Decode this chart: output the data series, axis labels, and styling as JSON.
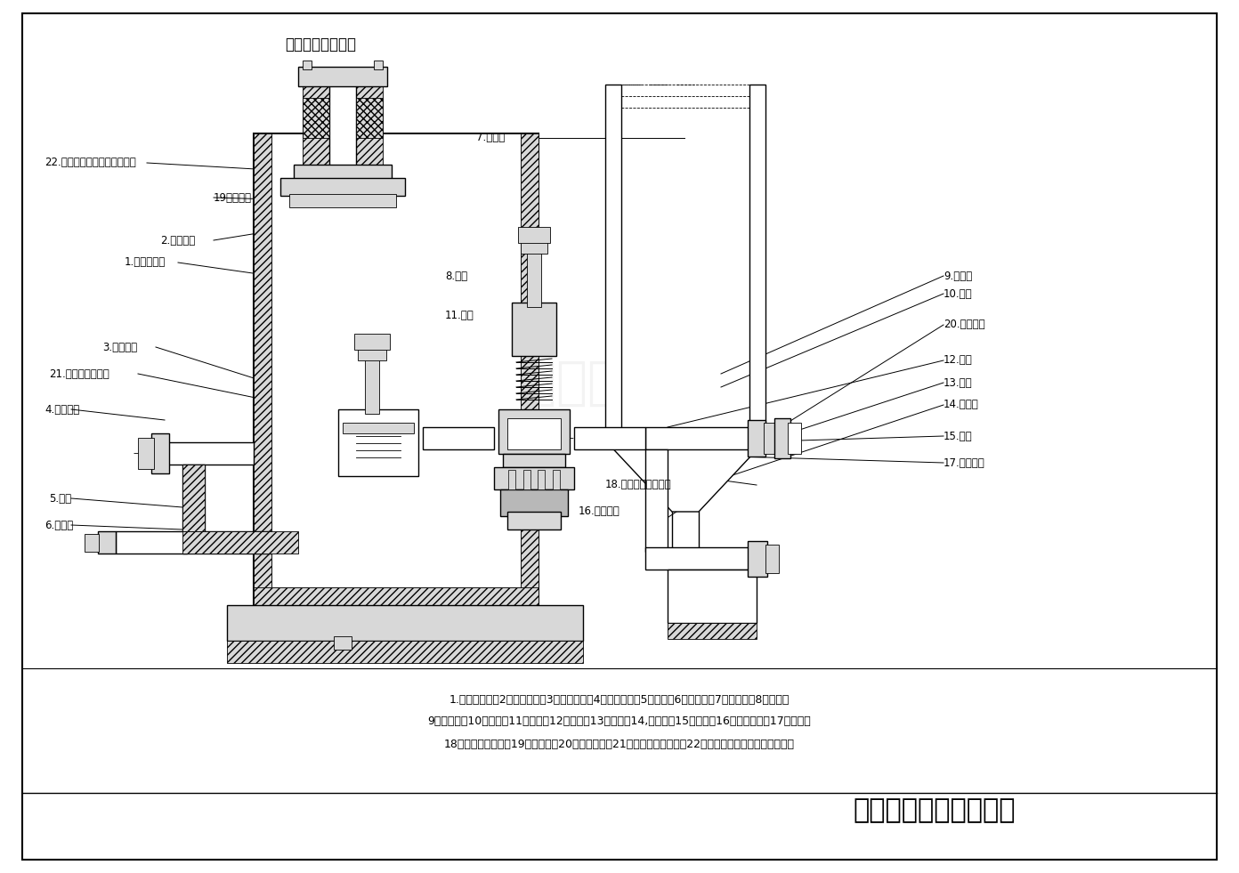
{
  "title": "不锈钢泵件示意图",
  "company": "咸阳华星泵业有限公司",
  "bg_color": "#ffffff",
  "line_color": "#000000",
  "parts_list_line1": "1.泵体工作腔；2，芯棒法兰；3，进口阀箱；4，进口法兰；5，弯管；6，方法兰；7，空气罐；8，阀盖；",
  "parts_list_line2": "9，导向杆；10，阀芯；11，弹簧；12，三通；13，弯管；14,方法兰；15，阀座；16，出口阀箱；17阀芯压板",
  "parts_list_line3": "18，阀芯压板螺丝；19，填料箱；20，出泵法兰；21，耐酸碱橡胶阀片；22耐酸碱填料密封",
  "watermark": "咸阳华星泵业有限公司",
  "scale": [
    1392,
    981
  ]
}
